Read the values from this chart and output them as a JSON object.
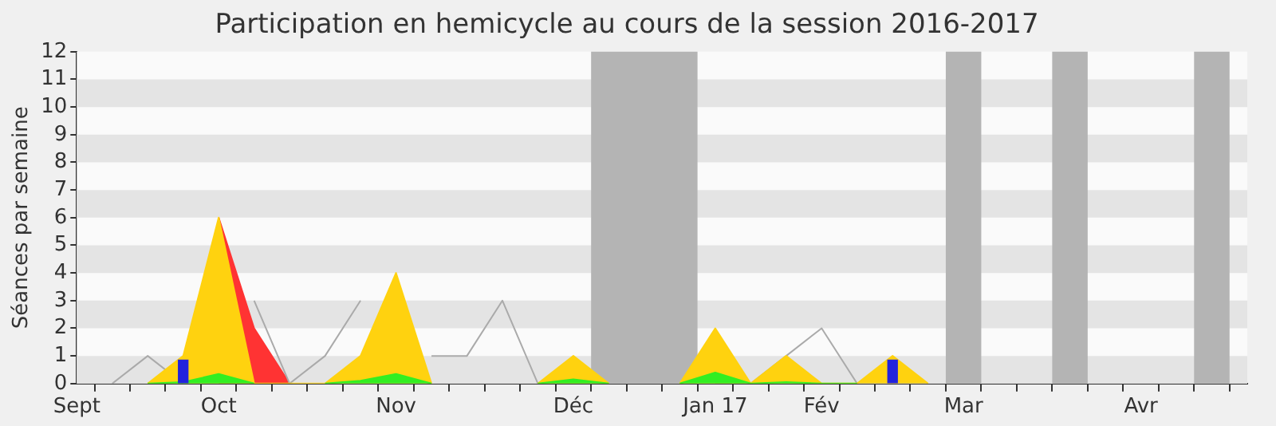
{
  "chart_data": {
    "type": "area",
    "title": "Participation en hemicycle au cours de la session 2016-2017",
    "ylabel": "Séances par semaine",
    "categories": [
      "Sept",
      null,
      null,
      null,
      "Oct",
      null,
      null,
      null,
      null,
      "Nov",
      null,
      null,
      null,
      null,
      "Déc",
      null,
      null,
      null,
      "Jan 17",
      null,
      null,
      "Fév",
      null,
      null,
      null,
      "Mar",
      null,
      null,
      null,
      null,
      "Avr",
      null,
      null,
      null
    ],
    "ylim": [
      0,
      12
    ],
    "yticks": [
      0,
      1,
      2,
      3,
      4,
      5,
      6,
      7,
      8,
      9,
      10,
      11,
      12
    ],
    "marker": "none",
    "series": [
      {
        "type": "bar",
        "color": "#2222dd",
        "values": [
          null,
          null,
          null,
          0.85,
          null,
          null,
          null,
          null,
          null,
          null,
          null,
          null,
          null,
          null,
          null,
          null,
          null,
          null,
          null,
          null,
          null,
          null,
          null,
          0.85,
          null,
          null,
          null,
          null,
          null,
          null,
          null,
          null,
          null,
          null
        ]
      },
      {
        "color": "#33ee22",
        "values": [
          null,
          null,
          0,
          0.05,
          0.35,
          0,
          null,
          0,
          0.1,
          0.35,
          0,
          null,
          null,
          0,
          0.15,
          0,
          null,
          0,
          0.4,
          0,
          0.05,
          0,
          0,
          null,
          null,
          null,
          null,
          null,
          null,
          null,
          null,
          null,
          null,
          null
        ]
      },
      {
        "color": "#ffd20f",
        "values": [
          null,
          null,
          0,
          1,
          6,
          0,
          0,
          0,
          1,
          4,
          0,
          null,
          null,
          0,
          1,
          0,
          null,
          0,
          2,
          0,
          1,
          0,
          0,
          1,
          0,
          null,
          null,
          null,
          null,
          null,
          null,
          null,
          null,
          null
        ]
      },
      {
        "type": "line",
        "color": "#aaaaaa",
        "values": [
          null,
          0,
          1,
          0,
          null,
          3,
          0,
          1,
          3,
          null,
          1,
          1,
          3,
          0,
          0,
          0,
          null,
          null,
          0,
          0,
          1,
          2,
          0,
          null,
          null,
          null,
          null,
          null,
          null,
          null,
          null,
          null,
          null,
          null
        ]
      },
      {
        "color": "#ff3333",
        "values": [
          null,
          null,
          null,
          null,
          6,
          2,
          0,
          null,
          null,
          null,
          null,
          null,
          null,
          null,
          null,
          null,
          null,
          null,
          null,
          null,
          null,
          null,
          null,
          null,
          null,
          null,
          null,
          null,
          null,
          null,
          null,
          null,
          null,
          null
        ]
      }
    ]
  }
}
